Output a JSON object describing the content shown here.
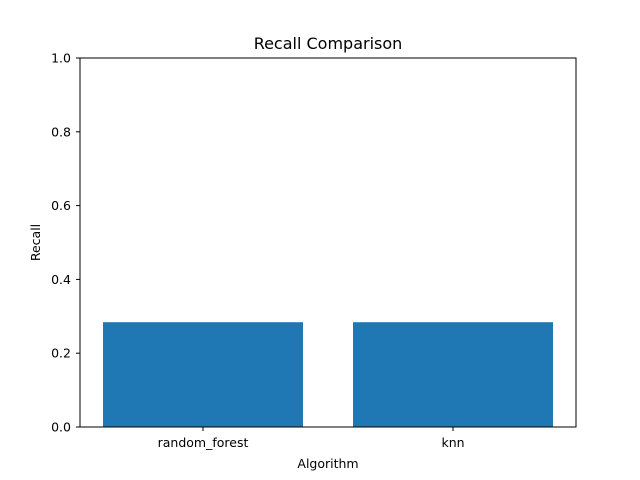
{
  "chart_data": {
    "type": "bar",
    "title": "Recall Comparison",
    "xlabel": "Algorithm",
    "ylabel": "Recall",
    "categories": [
      "random_forest",
      "knn"
    ],
    "values": [
      0.284,
      0.284
    ],
    "ylim": [
      0,
      1
    ],
    "yticks": [
      "0.0",
      "0.2",
      "0.4",
      "0.6",
      "0.8",
      "1.0"
    ],
    "grid": false,
    "bar_color": "#1f77b4"
  }
}
